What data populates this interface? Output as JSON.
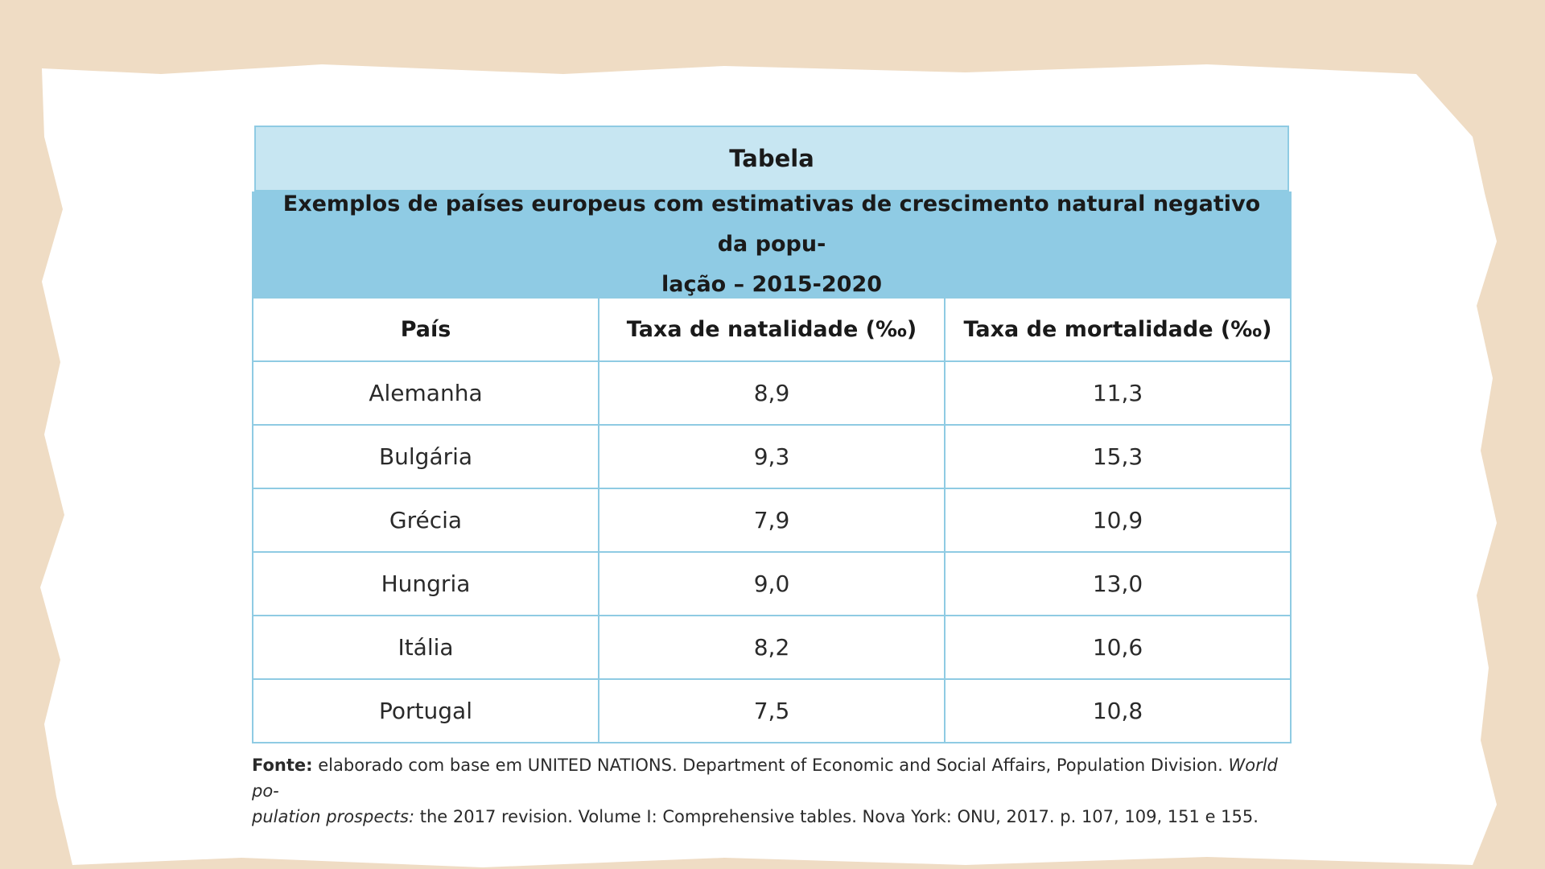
{
  "table": {
    "label": "Tabela",
    "title": "Exemplos de países europeus com estimativas de crescimento natural negativo da popu-lação – 2015-2020",
    "title_line1": "Exemplos de países europeus com estimativas de crescimento natural negativo da popu-",
    "title_line2": "lação – 2015-2020",
    "headers": [
      "País",
      "Taxa de natalidade (‰)",
      "Taxa de mortalidade (‰)"
    ],
    "rows": [
      [
        "Alemanha",
        "8,9",
        "11,3"
      ],
      [
        "Bulgária",
        "9,3",
        "15,3"
      ],
      [
        "Grécia",
        "7,9",
        "10,9"
      ],
      [
        "Hungria",
        "9,0",
        "13,0"
      ],
      [
        "Itália",
        "8,2",
        "10,6"
      ],
      [
        "Portugal",
        "7,5",
        "10,8"
      ]
    ]
  },
  "source": {
    "label": "Fonte:",
    "text1": " elaborado com base em UNITED NATIONS. Department of Economic and Social Affairs, Population Division. ",
    "italic1": "World po-",
    "italic2": "pulation prospects:",
    "text2": " the 2017 revision. Volume I: Comprehensive tables. Nova York: ONU, 2017. p. 107, 109, 151 e 155."
  },
  "colors": {
    "background": "#efdcc4",
    "title_band": "#c7e6f2",
    "subtitle_band": "#8fcbe4",
    "border": "#8fcbe3"
  }
}
